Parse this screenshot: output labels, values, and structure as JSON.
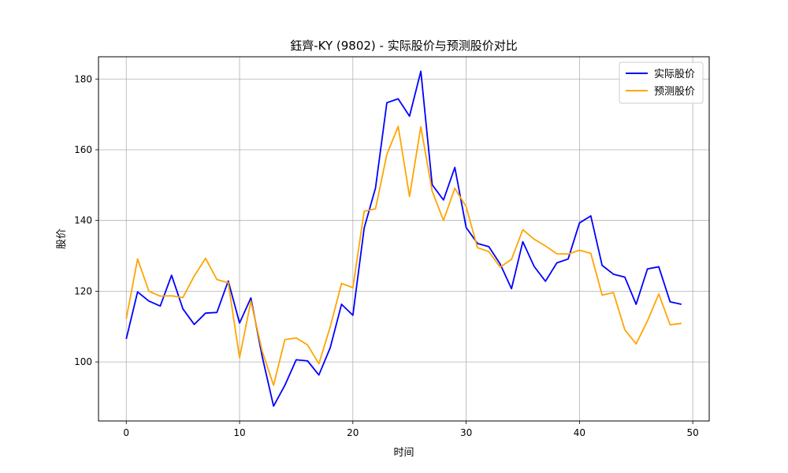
{
  "chart_data": {
    "type": "line",
    "title": "鈺齊-KY (9802) - 实际股价与预测股价对比",
    "xlabel": "时间",
    "ylabel": "股价",
    "xlim": [
      -2.45,
      51.45
    ],
    "ylim": [
      83.3,
      186.3
    ],
    "xticks": [
      0,
      10,
      20,
      30,
      40,
      50
    ],
    "yticks": [
      100,
      120,
      140,
      160,
      180
    ],
    "grid": true,
    "legend_position": "top-right",
    "x": [
      0,
      1,
      2,
      3,
      4,
      5,
      6,
      7,
      8,
      9,
      10,
      11,
      12,
      13,
      14,
      15,
      16,
      17,
      18,
      19,
      20,
      21,
      22,
      23,
      24,
      25,
      26,
      27,
      28,
      29,
      30,
      31,
      32,
      33,
      34,
      35,
      36,
      37,
      38,
      39,
      40,
      41,
      42,
      43,
      44,
      45,
      46,
      47,
      48,
      49
    ],
    "series": [
      {
        "name": "实际股价",
        "color": "#0000ff",
        "values": [
          106.5,
          119.8,
          117.2,
          115.8,
          124.5,
          115.0,
          110.6,
          113.8,
          114.0,
          122.9,
          111.0,
          118.1,
          101.5,
          87.5,
          93.4,
          100.6,
          100.3,
          96.3,
          104.0,
          116.3,
          113.2,
          137.9,
          149.2,
          173.3,
          174.4,
          169.5,
          182.2,
          150.1,
          145.8,
          155.0,
          138.0,
          133.5,
          132.6,
          127.7,
          120.7,
          134.0,
          127.0,
          122.8,
          128.0,
          129.1,
          139.3,
          141.3,
          127.3,
          124.8,
          124.0,
          116.3,
          126.3,
          126.9,
          117.0,
          116.3
        ]
      },
      {
        "name": "预测股价",
        "color": "#ffa500",
        "values": [
          112.2,
          129.1,
          120.0,
          118.6,
          118.7,
          118.2,
          124.3,
          129.3,
          123.3,
          122.4,
          101.2,
          117.2,
          103.0,
          93.4,
          106.3,
          106.8,
          104.8,
          99.5,
          109.9,
          122.2,
          121.0,
          142.6,
          143.3,
          158.7,
          166.6,
          146.8,
          166.5,
          148.3,
          140.0,
          149.1,
          143.9,
          132.3,
          131.2,
          126.8,
          129.0,
          137.4,
          134.7,
          132.8,
          130.6,
          130.5,
          131.6,
          130.7,
          118.9,
          119.6,
          109.1,
          105.1,
          111.6,
          119.2,
          110.5,
          110.9
        ]
      }
    ]
  }
}
